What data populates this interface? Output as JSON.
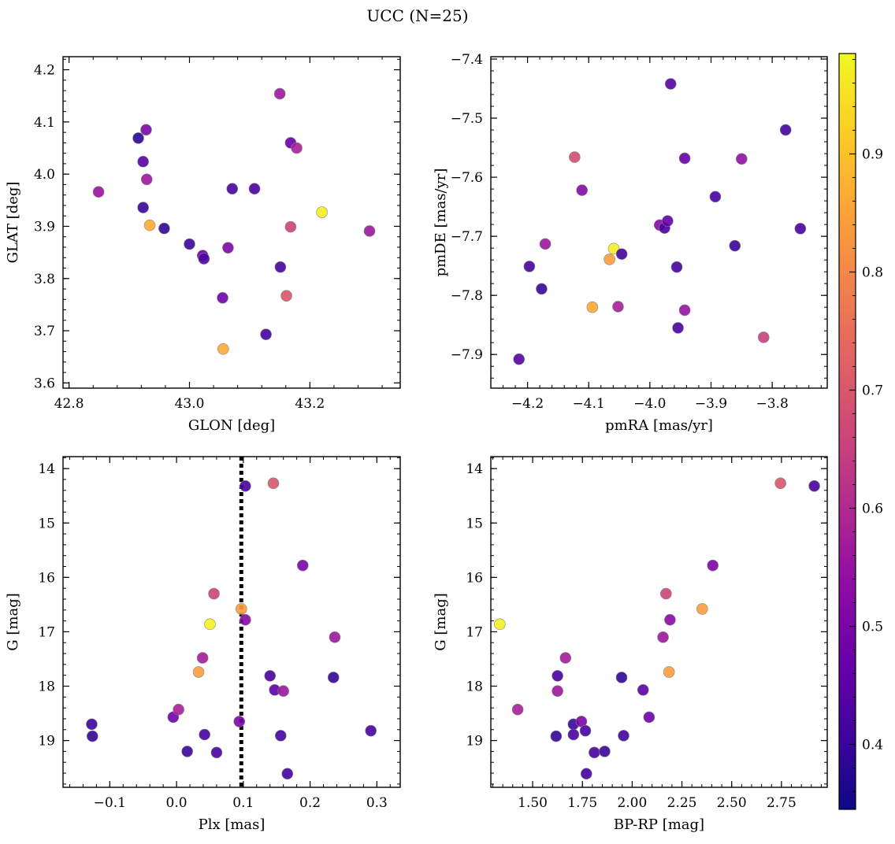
{
  "figure": {
    "title": "UCC (N=25)"
  },
  "colorbar": {
    "range": [
      0.345,
      0.985
    ],
    "ticks": [
      0.4,
      0.5,
      0.6,
      0.7,
      0.8,
      0.9
    ],
    "tick_labels": [
      "0.4",
      "0.5",
      "0.6",
      "0.7",
      "0.8",
      "0.9"
    ],
    "colormap": "plasma"
  },
  "chart_data": [
    {
      "type": "scatter",
      "xlabel": "GLON [deg]",
      "ylabel": "GLAT [deg]",
      "xlim": [
        42.79,
        43.35
      ],
      "ylim": [
        3.59,
        4.225
      ],
      "xticks": [
        42.8,
        43.0,
        43.2
      ],
      "xtick_labels": [
        "42.8",
        "43.0",
        "43.2"
      ],
      "yticks": [
        3.6,
        3.7,
        3.8,
        3.9,
        4.0,
        4.1,
        4.2
      ],
      "ytick_labels": [
        "3.6",
        "3.7",
        "3.8",
        "3.9",
        "4.0",
        "4.1",
        "4.2"
      ],
      "points": [
        {
          "x": 42.849,
          "y": 3.966,
          "c": 0.55
        },
        {
          "x": 42.915,
          "y": 4.069,
          "c": 0.38
        },
        {
          "x": 42.923,
          "y": 4.024,
          "c": 0.44
        },
        {
          "x": 42.928,
          "y": 4.085,
          "c": 0.5
        },
        {
          "x": 42.929,
          "y": 3.99,
          "c": 0.56
        },
        {
          "x": 42.923,
          "y": 3.936,
          "c": 0.4
        },
        {
          "x": 42.934,
          "y": 3.902,
          "c": 0.86
        },
        {
          "x": 42.958,
          "y": 3.896,
          "c": 0.39
        },
        {
          "x": 43.0,
          "y": 3.866,
          "c": 0.4
        },
        {
          "x": 43.022,
          "y": 3.844,
          "c": 0.47
        },
        {
          "x": 43.024,
          "y": 3.838,
          "c": 0.43
        },
        {
          "x": 43.055,
          "y": 3.763,
          "c": 0.48
        },
        {
          "x": 43.056,
          "y": 3.665,
          "c": 0.86
        },
        {
          "x": 43.064,
          "y": 3.859,
          "c": 0.5
        },
        {
          "x": 43.071,
          "y": 3.972,
          "c": 0.42
        },
        {
          "x": 43.108,
          "y": 3.972,
          "c": 0.42
        },
        {
          "x": 43.127,
          "y": 3.693,
          "c": 0.41
        },
        {
          "x": 43.15,
          "y": 4.154,
          "c": 0.56
        },
        {
          "x": 43.151,
          "y": 3.822,
          "c": 0.42
        },
        {
          "x": 43.161,
          "y": 3.767,
          "c": 0.7
        },
        {
          "x": 43.168,
          "y": 3.899,
          "c": 0.66
        },
        {
          "x": 43.168,
          "y": 4.06,
          "c": 0.47
        },
        {
          "x": 43.178,
          "y": 4.05,
          "c": 0.58
        },
        {
          "x": 43.22,
          "y": 3.927,
          "c": 0.97
        },
        {
          "x": 43.299,
          "y": 3.891,
          "c": 0.56
        }
      ]
    },
    {
      "type": "scatter",
      "xlabel": "pmRA [mas/yr]",
      "ylabel": "pmDE [mas/yr]",
      "xlim": [
        -4.26,
        -3.71
      ],
      "ylim": [
        -7.957,
        -7.396
      ],
      "xticks": [
        -4.2,
        -4.1,
        -4.0,
        -3.9,
        -3.8
      ],
      "xtick_labels": [
        "−4.2",
        "−4.1",
        "−4.0",
        "−3.9",
        "−3.8"
      ],
      "yticks": [
        -7.9,
        -7.8,
        -7.7,
        -7.6,
        -7.5,
        -7.4
      ],
      "ytick_labels": [
        "−7.9",
        "−7.8",
        "−7.7",
        "−7.6",
        "−7.5",
        "−7.4"
      ],
      "points": [
        {
          "x": -4.214,
          "y": -7.908,
          "c": 0.44
        },
        {
          "x": -4.197,
          "y": -7.751,
          "c": 0.42
        },
        {
          "x": -4.177,
          "y": -7.789,
          "c": 0.4
        },
        {
          "x": -4.171,
          "y": -7.713,
          "c": 0.56
        },
        {
          "x": -4.123,
          "y": -7.566,
          "c": 0.68
        },
        {
          "x": -4.111,
          "y": -7.622,
          "c": 0.52
        },
        {
          "x": -4.094,
          "y": -7.82,
          "c": 0.86
        },
        {
          "x": -4.066,
          "y": -7.739,
          "c": 0.84
        },
        {
          "x": -4.059,
          "y": -7.721,
          "c": 0.97
        },
        {
          "x": -4.052,
          "y": -7.819,
          "c": 0.58
        },
        {
          "x": -4.046,
          "y": -7.73,
          "c": 0.41
        },
        {
          "x": -3.984,
          "y": -7.681,
          "c": 0.52
        },
        {
          "x": -3.976,
          "y": -7.686,
          "c": 0.42
        },
        {
          "x": -3.971,
          "y": -7.674,
          "c": 0.46
        },
        {
          "x": -3.966,
          "y": -7.442,
          "c": 0.44
        },
        {
          "x": -3.956,
          "y": -7.752,
          "c": 0.42
        },
        {
          "x": -3.954,
          "y": -7.855,
          "c": 0.42
        },
        {
          "x": -3.943,
          "y": -7.568,
          "c": 0.47
        },
        {
          "x": -3.943,
          "y": -7.825,
          "c": 0.55
        },
        {
          "x": -3.893,
          "y": -7.633,
          "c": 0.42
        },
        {
          "x": -3.861,
          "y": -7.716,
          "c": 0.4
        },
        {
          "x": -3.85,
          "y": -7.569,
          "c": 0.54
        },
        {
          "x": -3.814,
          "y": -7.871,
          "c": 0.65
        },
        {
          "x": -3.778,
          "y": -7.52,
          "c": 0.41
        },
        {
          "x": -3.754,
          "y": -7.687,
          "c": 0.42
        }
      ]
    },
    {
      "type": "scatter",
      "xlabel": "Plx [mas]",
      "ylabel": "G [mag]",
      "xlim": [
        -0.17,
        0.335
      ],
      "ylim": [
        19.86,
        13.78
      ],
      "y_inverted": true,
      "vline": 0.097,
      "xticks": [
        -0.1,
        0.0,
        0.1,
        0.2,
        0.3
      ],
      "xtick_labels": [
        "−0.1",
        "0.0",
        "0.1",
        "0.2",
        "0.3"
      ],
      "yticks": [
        14,
        15,
        16,
        17,
        18,
        19
      ],
      "ytick_labels": [
        "14",
        "15",
        "16",
        "17",
        "18",
        "19"
      ],
      "points": [
        {
          "x": -0.127,
          "y": 18.7,
          "c": 0.4
        },
        {
          "x": -0.126,
          "y": 18.92,
          "c": 0.39
        },
        {
          "x": -0.005,
          "y": 18.57,
          "c": 0.48
        },
        {
          "x": 0.003,
          "y": 18.43,
          "c": 0.58
        },
        {
          "x": 0.016,
          "y": 19.2,
          "c": 0.4
        },
        {
          "x": 0.033,
          "y": 17.74,
          "c": 0.84
        },
        {
          "x": 0.039,
          "y": 17.48,
          "c": 0.57
        },
        {
          "x": 0.042,
          "y": 18.89,
          "c": 0.42
        },
        {
          "x": 0.05,
          "y": 16.86,
          "c": 0.97
        },
        {
          "x": 0.056,
          "y": 16.3,
          "c": 0.66
        },
        {
          "x": 0.06,
          "y": 19.22,
          "c": 0.42
        },
        {
          "x": 0.094,
          "y": 18.65,
          "c": 0.5
        },
        {
          "x": 0.097,
          "y": 16.58,
          "c": 0.84
        },
        {
          "x": 0.103,
          "y": 16.78,
          "c": 0.52
        },
        {
          "x": 0.103,
          "y": 14.32,
          "c": 0.42
        },
        {
          "x": 0.14,
          "y": 17.81,
          "c": 0.42
        },
        {
          "x": 0.145,
          "y": 14.27,
          "c": 0.7
        },
        {
          "x": 0.147,
          "y": 18.07,
          "c": 0.45
        },
        {
          "x": 0.156,
          "y": 18.91,
          "c": 0.41
        },
        {
          "x": 0.16,
          "y": 18.09,
          "c": 0.56
        },
        {
          "x": 0.166,
          "y": 19.61,
          "c": 0.41
        },
        {
          "x": 0.189,
          "y": 15.78,
          "c": 0.5
        },
        {
          "x": 0.235,
          "y": 17.84,
          "c": 0.39
        },
        {
          "x": 0.237,
          "y": 17.1,
          "c": 0.56
        },
        {
          "x": 0.291,
          "y": 18.82,
          "c": 0.42
        }
      ]
    },
    {
      "type": "scatter",
      "xlabel": "BP-RP [mag]",
      "ylabel": "G [mag]",
      "xlim": [
        1.29,
        2.98
      ],
      "ylim": [
        19.86,
        13.78
      ],
      "y_inverted": true,
      "xticks": [
        1.5,
        1.75,
        2.0,
        2.25,
        2.5,
        2.75
      ],
      "xtick_labels": [
        "1.50",
        "1.75",
        "2.00",
        "2.25",
        "2.50",
        "2.75"
      ],
      "yticks": [
        14,
        15,
        16,
        17,
        18,
        19
      ],
      "ytick_labels": [
        "14",
        "15",
        "16",
        "17",
        "18",
        "19"
      ],
      "points": [
        {
          "x": 1.335,
          "y": 16.86,
          "c": 0.97
        },
        {
          "x": 1.425,
          "y": 18.43,
          "c": 0.58
        },
        {
          "x": 1.618,
          "y": 18.92,
          "c": 0.39
        },
        {
          "x": 1.625,
          "y": 17.81,
          "c": 0.42
        },
        {
          "x": 1.625,
          "y": 18.09,
          "c": 0.56
        },
        {
          "x": 1.665,
          "y": 17.48,
          "c": 0.57
        },
        {
          "x": 1.705,
          "y": 18.7,
          "c": 0.4
        },
        {
          "x": 1.705,
          "y": 18.89,
          "c": 0.42
        },
        {
          "x": 1.745,
          "y": 18.65,
          "c": 0.5
        },
        {
          "x": 1.765,
          "y": 18.82,
          "c": 0.42
        },
        {
          "x": 1.77,
          "y": 19.61,
          "c": 0.41
        },
        {
          "x": 1.81,
          "y": 19.22,
          "c": 0.42
        },
        {
          "x": 1.862,
          "y": 19.2,
          "c": 0.4
        },
        {
          "x": 1.947,
          "y": 17.84,
          "c": 0.39
        },
        {
          "x": 1.957,
          "y": 18.91,
          "c": 0.41
        },
        {
          "x": 2.055,
          "y": 18.07,
          "c": 0.45
        },
        {
          "x": 2.085,
          "y": 18.57,
          "c": 0.48
        },
        {
          "x": 2.155,
          "y": 17.1,
          "c": 0.56
        },
        {
          "x": 2.17,
          "y": 16.3,
          "c": 0.66
        },
        {
          "x": 2.185,
          "y": 17.74,
          "c": 0.84
        },
        {
          "x": 2.19,
          "y": 16.78,
          "c": 0.52
        },
        {
          "x": 2.352,
          "y": 16.58,
          "c": 0.84
        },
        {
          "x": 2.405,
          "y": 15.78,
          "c": 0.5
        },
        {
          "x": 2.745,
          "y": 14.27,
          "c": 0.7
        },
        {
          "x": 2.915,
          "y": 14.32,
          "c": 0.42
        }
      ]
    }
  ]
}
